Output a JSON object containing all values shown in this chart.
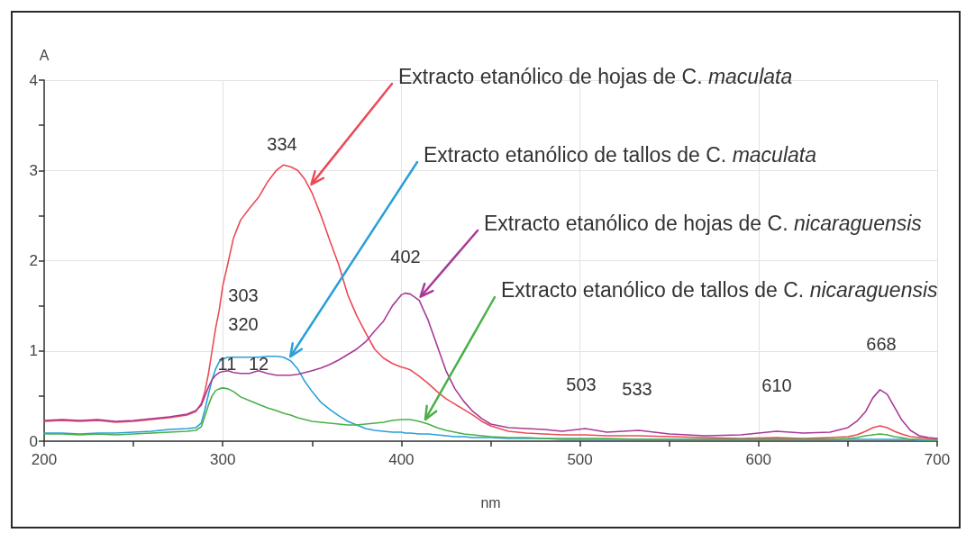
{
  "chart_data": {
    "type": "line",
    "xlabel": "nm",
    "ylabel": "A",
    "x": [
      200,
      210,
      220,
      230,
      240,
      250,
      260,
      270,
      280,
      285,
      288,
      290,
      292,
      294,
      296,
      298,
      300,
      303,
      306,
      310,
      315,
      320,
      325,
      330,
      334,
      338,
      342,
      346,
      350,
      355,
      360,
      365,
      370,
      375,
      380,
      385,
      390,
      395,
      400,
      402,
      405,
      410,
      415,
      420,
      425,
      430,
      435,
      440,
      445,
      450,
      460,
      470,
      480,
      490,
      503,
      515,
      533,
      550,
      570,
      590,
      610,
      625,
      640,
      650,
      655,
      660,
      664,
      668,
      672,
      676,
      680,
      685,
      690,
      695,
      700
    ],
    "series": [
      {
        "name": "Extracto etanólico de hojas de C. maculata",
        "color": "#ec4a56",
        "values": [
          0.22,
          0.23,
          0.22,
          0.23,
          0.21,
          0.22,
          0.24,
          0.26,
          0.29,
          0.33,
          0.42,
          0.55,
          0.75,
          1.0,
          1.25,
          1.45,
          1.72,
          1.98,
          2.25,
          2.45,
          2.58,
          2.7,
          2.87,
          3.0,
          3.06,
          3.04,
          3.0,
          2.9,
          2.75,
          2.5,
          2.22,
          1.95,
          1.62,
          1.39,
          1.2,
          1.02,
          0.92,
          0.86,
          0.82,
          0.81,
          0.79,
          0.72,
          0.64,
          0.55,
          0.47,
          0.41,
          0.35,
          0.29,
          0.22,
          0.17,
          0.11,
          0.09,
          0.08,
          0.07,
          0.07,
          0.06,
          0.06,
          0.05,
          0.04,
          0.03,
          0.04,
          0.03,
          0.04,
          0.05,
          0.07,
          0.11,
          0.15,
          0.17,
          0.15,
          0.11,
          0.08,
          0.05,
          0.04,
          0.03,
          0.03
        ]
      },
      {
        "name": "Extracto etanólico de tallos de C. maculata",
        "color": "#2a9fd8",
        "values": [
          0.09,
          0.09,
          0.08,
          0.09,
          0.09,
          0.1,
          0.11,
          0.13,
          0.14,
          0.15,
          0.2,
          0.35,
          0.52,
          0.68,
          0.8,
          0.88,
          0.91,
          0.93,
          0.93,
          0.93,
          0.93,
          0.93,
          0.94,
          0.94,
          0.93,
          0.89,
          0.8,
          0.66,
          0.55,
          0.43,
          0.35,
          0.28,
          0.22,
          0.18,
          0.14,
          0.12,
          0.11,
          0.1,
          0.1,
          0.09,
          0.09,
          0.08,
          0.08,
          0.07,
          0.06,
          0.05,
          0.05,
          0.04,
          0.04,
          0.04,
          0.03,
          0.03,
          0.03,
          0.02,
          0.02,
          0.02,
          0.02,
          0.02,
          0.02,
          0.02,
          0.02,
          0.02,
          0.02,
          0.02,
          0.02,
          0.02,
          0.02,
          0.02,
          0.02,
          0.02,
          0.02,
          0.02,
          0.01,
          0.01,
          0.01
        ]
      },
      {
        "name": "Extracto etanólico de hojas de C. nicaraguensis",
        "color": "#a83a96",
        "values": [
          0.23,
          0.24,
          0.23,
          0.24,
          0.22,
          0.23,
          0.25,
          0.27,
          0.3,
          0.34,
          0.4,
          0.5,
          0.6,
          0.68,
          0.73,
          0.76,
          0.77,
          0.78,
          0.76,
          0.75,
          0.75,
          0.78,
          0.75,
          0.73,
          0.73,
          0.73,
          0.74,
          0.76,
          0.78,
          0.81,
          0.85,
          0.9,
          0.96,
          1.02,
          1.1,
          1.22,
          1.33,
          1.5,
          1.62,
          1.64,
          1.63,
          1.56,
          1.34,
          1.06,
          0.78,
          0.58,
          0.44,
          0.33,
          0.25,
          0.19,
          0.15,
          0.14,
          0.13,
          0.11,
          0.14,
          0.1,
          0.12,
          0.08,
          0.06,
          0.07,
          0.11,
          0.09,
          0.1,
          0.15,
          0.22,
          0.33,
          0.48,
          0.57,
          0.52,
          0.38,
          0.24,
          0.12,
          0.06,
          0.04,
          0.03
        ]
      },
      {
        "name": "Extracto etanólico de tallos de C. nicaraguensis",
        "color": "#4ab048",
        "values": [
          0.08,
          0.08,
          0.07,
          0.08,
          0.07,
          0.08,
          0.09,
          0.1,
          0.11,
          0.12,
          0.16,
          0.28,
          0.4,
          0.5,
          0.56,
          0.58,
          0.59,
          0.58,
          0.55,
          0.49,
          0.45,
          0.41,
          0.37,
          0.34,
          0.31,
          0.29,
          0.26,
          0.24,
          0.22,
          0.21,
          0.2,
          0.19,
          0.18,
          0.18,
          0.19,
          0.2,
          0.21,
          0.23,
          0.24,
          0.24,
          0.24,
          0.22,
          0.19,
          0.15,
          0.12,
          0.1,
          0.08,
          0.07,
          0.06,
          0.05,
          0.04,
          0.04,
          0.03,
          0.03,
          0.03,
          0.03,
          0.02,
          0.02,
          0.02,
          0.02,
          0.02,
          0.02,
          0.02,
          0.03,
          0.04,
          0.06,
          0.07,
          0.08,
          0.07,
          0.05,
          0.04,
          0.02,
          0.02,
          0.01,
          0.01
        ]
      }
    ],
    "xlim": [
      200,
      700
    ],
    "xticks": [
      200,
      {
        "value": 250,
        "label": null
      },
      300,
      {
        "value": 350,
        "label": null
      },
      400,
      {
        "value": 450,
        "label": null
      },
      500,
      {
        "value": 550,
        "label": null
      },
      600,
      {
        "value": 650,
        "label": null
      },
      700
    ],
    "ylim": [
      0,
      4
    ],
    "yticks": [
      0,
      {
        "value": 0.5,
        "label": null
      },
      1,
      {
        "value": 1.5,
        "label": null
      },
      2,
      {
        "value": 2.5,
        "label": null
      },
      3,
      {
        "value": 3.5,
        "label": null
      },
      4
    ],
    "grid": true,
    "annotations": [
      "334",
      "303",
      "320",
      "11",
      "12",
      "402",
      "503",
      "533",
      "610",
      "668"
    ]
  }
}
